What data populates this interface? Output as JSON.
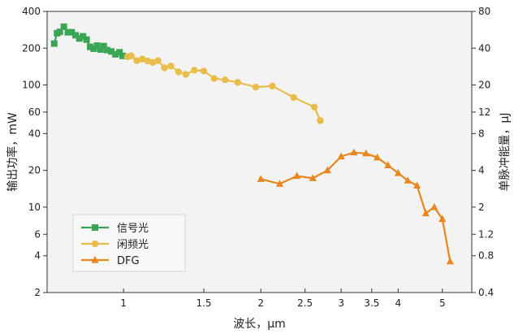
{
  "chart_data": {
    "type": "line",
    "xlabel": "波长，μm",
    "ylabel": "输出功率，mW",
    "ylabel_right": "单脉冲能量，μJ",
    "xscale": "log",
    "yscale": "log",
    "xlim": [
      0.68,
      5.8
    ],
    "ylim": [
      2,
      400
    ],
    "ylim_right": [
      0.4,
      80
    ],
    "x_ticks": [
      {
        "v": 1,
        "label": "1"
      },
      {
        "v": 1.5,
        "label": "1.5"
      },
      {
        "v": 2,
        "label": "2"
      },
      {
        "v": 2.5,
        "label": "2.5"
      },
      {
        "v": 3,
        "label": "3"
      },
      {
        "v": 3.5,
        "label": "3.5"
      },
      {
        "v": 4,
        "label": "4"
      },
      {
        "v": 5,
        "label": "5"
      }
    ],
    "y_ticks": [
      {
        "v": 2,
        "label": "2"
      },
      {
        "v": 4,
        "label": "4"
      },
      {
        "v": 6,
        "label": "6"
      },
      {
        "v": 10,
        "label": "10"
      },
      {
        "v": 20,
        "label": "20"
      },
      {
        "v": 40,
        "label": "40"
      },
      {
        "v": 60,
        "label": "60"
      },
      {
        "v": 100,
        "label": "100"
      },
      {
        "v": 200,
        "label": "200"
      },
      {
        "v": 400,
        "label": "400"
      }
    ],
    "y_right_ticks": [
      {
        "v": 0.4,
        "label": "0.4"
      },
      {
        "v": 0.8,
        "label": "0.8"
      },
      {
        "v": 1.2,
        "label": "1.2"
      },
      {
        "v": 2,
        "label": "2"
      },
      {
        "v": 4,
        "label": "4"
      },
      {
        "v": 8,
        "label": "8"
      },
      {
        "v": 12,
        "label": "12"
      },
      {
        "v": 20,
        "label": "20"
      },
      {
        "v": 40,
        "label": "40"
      },
      {
        "v": 80,
        "label": "80"
      }
    ],
    "grid": false,
    "legend_position": "bottom-left",
    "series": [
      {
        "name": "信号光",
        "color": "#3aa655",
        "marker": "square",
        "axis": "left",
        "points": [
          [
            0.705,
            218
          ],
          [
            0.715,
            265
          ],
          [
            0.725,
            272
          ],
          [
            0.74,
            300
          ],
          [
            0.755,
            270
          ],
          [
            0.77,
            270
          ],
          [
            0.785,
            255
          ],
          [
            0.8,
            240
          ],
          [
            0.815,
            250
          ],
          [
            0.83,
            235
          ],
          [
            0.845,
            205
          ],
          [
            0.86,
            198
          ],
          [
            0.875,
            210
          ],
          [
            0.89,
            195
          ],
          [
            0.905,
            208
          ],
          [
            0.92,
            193
          ],
          [
            0.94,
            188
          ],
          [
            0.96,
            178
          ],
          [
            0.98,
            185
          ],
          [
            0.995,
            173
          ]
        ]
      },
      {
        "name": "闲频光",
        "color": "#e9bd4a",
        "marker": "circle",
        "axis": "left",
        "points": [
          [
            1.02,
            170
          ],
          [
            1.04,
            173
          ],
          [
            1.07,
            158
          ],
          [
            1.1,
            163
          ],
          [
            1.13,
            157
          ],
          [
            1.16,
            153
          ],
          [
            1.19,
            158
          ],
          [
            1.23,
            138
          ],
          [
            1.27,
            143
          ],
          [
            1.32,
            128
          ],
          [
            1.37,
            122
          ],
          [
            1.43,
            132
          ],
          [
            1.5,
            130
          ],
          [
            1.58,
            113
          ],
          [
            1.67,
            110
          ],
          [
            1.78,
            105
          ],
          [
            1.95,
            96
          ],
          [
            2.12,
            98
          ],
          [
            2.36,
            79
          ],
          [
            2.62,
            66
          ],
          [
            2.7,
            51
          ]
        ]
      },
      {
        "name": "DFG",
        "color": "#e8861f",
        "marker": "triangle",
        "axis": "right",
        "points": [
          [
            2.0,
            3.4
          ],
          [
            2.2,
            3.1
          ],
          [
            2.4,
            3.6
          ],
          [
            2.6,
            3.45
          ],
          [
            2.8,
            4.0
          ],
          [
            3.0,
            5.2
          ],
          [
            3.2,
            5.6
          ],
          [
            3.4,
            5.5
          ],
          [
            3.6,
            5.1
          ],
          [
            3.8,
            4.4
          ],
          [
            4.0,
            3.8
          ],
          [
            4.2,
            3.3
          ],
          [
            4.4,
            3.0
          ],
          [
            4.6,
            1.78
          ],
          [
            4.8,
            2.0
          ],
          [
            5.0,
            1.6
          ],
          [
            5.2,
            0.72
          ]
        ]
      }
    ]
  }
}
